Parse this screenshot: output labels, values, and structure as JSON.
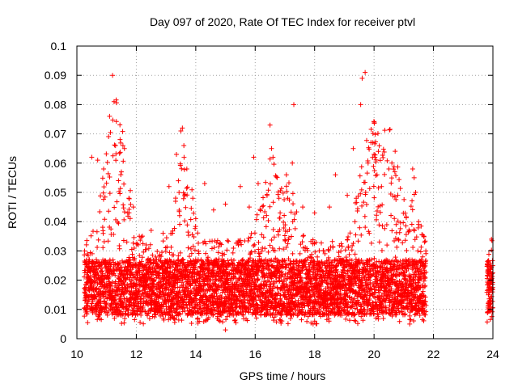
{
  "chart_data": {
    "type": "scatter",
    "title": "Day 097 of 2020, Rate Of TEC Index for receiver ptvl",
    "xlabel": "GPS time / hours",
    "ylabel": "ROTI / TECUs",
    "xlim": [
      10,
      24
    ],
    "ylim": [
      0,
      0.1
    ],
    "grid": true,
    "marker": "+",
    "color": "#ff0000",
    "x_ticks": [
      10,
      12,
      14,
      16,
      18,
      20,
      22,
      24
    ],
    "x_tick_labels": [
      "10",
      "12",
      "14",
      "16",
      "18",
      "20",
      "22",
      "24"
    ],
    "y_ticks": [
      0,
      0.01,
      0.02,
      0.03,
      0.04,
      0.05,
      0.06,
      0.07,
      0.08,
      0.09,
      0.1
    ],
    "y_tick_labels": [
      "0",
      "0.01",
      "0.02",
      "0.03",
      "0.04",
      "0.05",
      "0.06",
      "0.07",
      "0.08",
      "0.09",
      "0.1"
    ],
    "series": [
      {
        "name": "ROTI",
        "coverage": [
          [
            10.25,
            21.75
          ],
          [
            23.8,
            24.0
          ]
        ],
        "baseline_range": [
          0.005,
          0.03
        ],
        "noise_floor": 0.003,
        "points": [
          {
            "x": 10.5,
            "y": 0.062
          },
          {
            "x": 10.7,
            "y": 0.061
          },
          {
            "x": 10.9,
            "y": 0.058
          },
          {
            "x": 11.1,
            "y": 0.076
          },
          {
            "x": 11.2,
            "y": 0.09
          },
          {
            "x": 11.25,
            "y": 0.081
          },
          {
            "x": 11.3,
            "y": 0.066
          },
          {
            "x": 11.4,
            "y": 0.054
          },
          {
            "x": 11.55,
            "y": 0.066
          },
          {
            "x": 11.6,
            "y": 0.065
          },
          {
            "x": 11.75,
            "y": 0.048
          },
          {
            "x": 11.9,
            "y": 0.045
          },
          {
            "x": 12.1,
            "y": 0.035
          },
          {
            "x": 12.5,
            "y": 0.037
          },
          {
            "x": 12.9,
            "y": 0.036
          },
          {
            "x": 13.1,
            "y": 0.052
          },
          {
            "x": 13.35,
            "y": 0.063
          },
          {
            "x": 13.5,
            "y": 0.071
          },
          {
            "x": 13.55,
            "y": 0.072
          },
          {
            "x": 13.6,
            "y": 0.066
          },
          {
            "x": 13.7,
            "y": 0.058
          },
          {
            "x": 13.9,
            "y": 0.048
          },
          {
            "x": 14.3,
            "y": 0.053
          },
          {
            "x": 14.6,
            "y": 0.044
          },
          {
            "x": 15.0,
            "y": 0.046
          },
          {
            "x": 15.5,
            "y": 0.052
          },
          {
            "x": 15.8,
            "y": 0.045
          },
          {
            "x": 15.95,
            "y": 0.062
          },
          {
            "x": 16.1,
            "y": 0.053
          },
          {
            "x": 16.5,
            "y": 0.073
          },
          {
            "x": 16.55,
            "y": 0.065
          },
          {
            "x": 16.6,
            "y": 0.062
          },
          {
            "x": 16.8,
            "y": 0.048
          },
          {
            "x": 17.05,
            "y": 0.056
          },
          {
            "x": 17.3,
            "y": 0.08
          },
          {
            "x": 17.25,
            "y": 0.06
          },
          {
            "x": 17.6,
            "y": 0.045
          },
          {
            "x": 18.0,
            "y": 0.043
          },
          {
            "x": 18.5,
            "y": 0.045
          },
          {
            "x": 18.7,
            "y": 0.056
          },
          {
            "x": 19.1,
            "y": 0.049
          },
          {
            "x": 19.3,
            "y": 0.065
          },
          {
            "x": 19.4,
            "y": 0.048
          },
          {
            "x": 19.6,
            "y": 0.089
          },
          {
            "x": 19.7,
            "y": 0.091
          },
          {
            "x": 19.55,
            "y": 0.08
          },
          {
            "x": 19.8,
            "y": 0.06
          },
          {
            "x": 19.95,
            "y": 0.067
          },
          {
            "x": 20.0,
            "y": 0.063
          },
          {
            "x": 20.1,
            "y": 0.056
          },
          {
            "x": 20.25,
            "y": 0.052
          },
          {
            "x": 20.5,
            "y": 0.058
          },
          {
            "x": 20.6,
            "y": 0.06
          },
          {
            "x": 20.7,
            "y": 0.057
          },
          {
            "x": 20.8,
            "y": 0.049
          },
          {
            "x": 21.3,
            "y": 0.058
          },
          {
            "x": 21.35,
            "y": 0.055
          },
          {
            "x": 21.4,
            "y": 0.05
          },
          {
            "x": 21.5,
            "y": 0.04
          },
          {
            "x": 21.7,
            "y": 0.033
          },
          {
            "x": 23.95,
            "y": 0.034
          },
          {
            "x": 23.9,
            "y": 0.024
          },
          {
            "x": 23.85,
            "y": 0.015
          },
          {
            "x": 15.0,
            "y": 0.003
          },
          {
            "x": 18.0,
            "y": 0.006
          },
          {
            "x": 21.2,
            "y": 0.005
          }
        ]
      }
    ]
  }
}
